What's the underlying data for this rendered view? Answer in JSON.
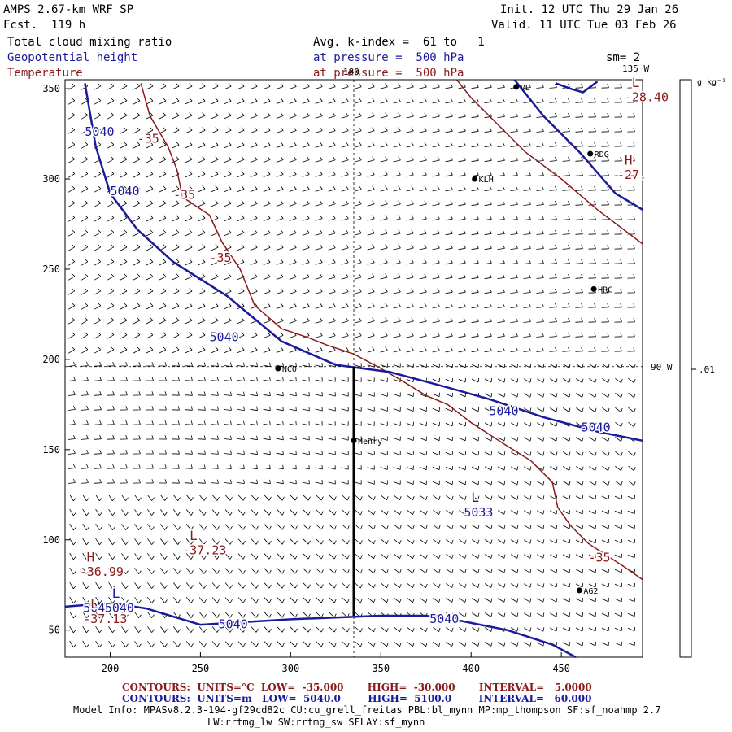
{
  "header": {
    "model": "AMPS 2.67-km WRF SP",
    "forecast": "Fcst.  119 h",
    "init": "Init. 12 UTC Thu 29 Jan 26",
    "valid": "Valid. 11 UTC Tue 03 Feb 26",
    "field_cloud": "Total cloud mixing ratio",
    "field_height": "Geopotential height",
    "field_temp": "Temperature",
    "avg": "Avg. k-index =  61 to   1",
    "pressure_height": "at pressure =  500 hPa",
    "pressure_temp": "at pressure =  500 hPa",
    "smoothing": "sm= 2"
  },
  "colorbar": {
    "units": "g kg⁻¹",
    "tick_value": ".01"
  },
  "map_labels": {
    "lon_180": "180",
    "lon_135w": "135 W",
    "lon_90w": "90 W"
  },
  "stations": [
    {
      "name": "NCO",
      "x": 293,
      "y": 195
    },
    {
      "name": "Henry",
      "x": 335,
      "y": 155
    },
    {
      "name": "KLH",
      "x": 402,
      "y": 300
    },
    {
      "name": "RDG",
      "x": 466,
      "y": 314
    },
    {
      "name": "HRC",
      "x": 468,
      "y": 239
    },
    {
      "name": "AG2",
      "x": 460,
      "y": 72
    },
    {
      "name": "VL",
      "x": 425,
      "y": 351
    }
  ],
  "chart_data": {
    "type": "line",
    "xlim": [
      175,
      495
    ],
    "ylim": [
      35,
      355
    ],
    "x_ticks": [
      200,
      250,
      300,
      350,
      400,
      450
    ],
    "y_ticks": [
      50,
      100,
      150,
      200,
      250,
      300,
      350
    ],
    "grid": false,
    "crosshair": {
      "x": 335,
      "y": 196
    },
    "cross_section": {
      "x": 335,
      "y_from": 58,
      "y_to": 196
    },
    "height_contours": [
      {
        "value": "5040",
        "points": [
          [
            186,
            353
          ],
          [
            192,
            318
          ],
          [
            200,
            292
          ],
          [
            215,
            272
          ],
          [
            235,
            254
          ],
          [
            265,
            235
          ],
          [
            295,
            210
          ],
          [
            325,
            197
          ],
          [
            355,
            193
          ],
          [
            385,
            185
          ],
          [
            410,
            178
          ],
          [
            440,
            168
          ],
          [
            470,
            160
          ],
          [
            495,
            155
          ]
        ]
      },
      {
        "value": "5040",
        "points": [
          [
            175,
            63
          ],
          [
            200,
            65
          ],
          [
            220,
            62
          ],
          [
            250,
            53
          ],
          [
            300,
            56
          ],
          [
            350,
            58
          ],
          [
            375,
            58
          ],
          [
            395,
            55
          ],
          [
            420,
            50
          ],
          [
            445,
            42
          ],
          [
            458,
            35
          ]
        ]
      },
      {
        "value": "",
        "points": [
          [
            424,
            355
          ],
          [
            440,
            335
          ],
          [
            460,
            315
          ],
          [
            480,
            292
          ],
          [
            495,
            283
          ]
        ]
      },
      {
        "value": "",
        "points": [
          [
            447,
            353
          ],
          [
            455,
            350
          ],
          [
            462,
            348
          ],
          [
            470,
            354
          ]
        ]
      }
    ],
    "height_labels": [
      {
        "text": "5040",
        "x": 186,
        "y": 324
      },
      {
        "text": "5040",
        "x": 200,
        "y": 291
      },
      {
        "text": "5040",
        "x": 255,
        "y": 210
      },
      {
        "text": "5040",
        "x": 410,
        "y": 169
      },
      {
        "text": "5040",
        "x": 461,
        "y": 160
      },
      {
        "text": "5040",
        "x": 185,
        "y": 60
      },
      {
        "text": "5040",
        "x": 260,
        "y": 51
      },
      {
        "text": "5040",
        "x": 377,
        "y": 54
      }
    ],
    "height_extrema": [
      {
        "type": "L",
        "value": "5033",
        "x": 396,
        "y": 113
      },
      {
        "type": "L",
        "value": "5040",
        "x": 197,
        "y": 60
      }
    ],
    "temp_contours": [
      {
        "value": "-35",
        "points": [
          [
            217,
            353
          ],
          [
            222,
            335
          ],
          [
            232,
            318
          ],
          [
            237,
            305
          ],
          [
            240,
            290
          ],
          [
            255,
            280
          ],
          [
            262,
            265
          ],
          [
            272,
            250
          ],
          [
            280,
            230
          ],
          [
            295,
            217
          ],
          [
            310,
            212
          ],
          [
            320,
            208
          ],
          [
            335,
            203
          ],
          [
            350,
            195
          ],
          [
            362,
            188
          ],
          [
            375,
            180
          ],
          [
            387,
            175
          ],
          [
            400,
            165
          ],
          [
            420,
            152
          ],
          [
            433,
            144
          ],
          [
            445,
            132
          ],
          [
            448,
            118
          ],
          [
            455,
            108
          ],
          [
            465,
            98
          ],
          [
            485,
            85
          ],
          [
            495,
            78
          ]
        ]
      },
      {
        "value": "",
        "points": [
          [
            392,
            355
          ],
          [
            400,
            345
          ],
          [
            415,
            330
          ],
          [
            430,
            315
          ],
          [
            450,
            300
          ],
          [
            470,
            283
          ],
          [
            495,
            264
          ]
        ]
      }
    ],
    "temp_labels": [
      {
        "text": "-35",
        "x": 215,
        "y": 320
      },
      {
        "text": "-35",
        "x": 235,
        "y": 289
      },
      {
        "text": "-35",
        "x": 255,
        "y": 254
      },
      {
        "text": "-35",
        "x": 465,
        "y": 88
      }
    ],
    "temp_extrema": [
      {
        "type": "H",
        "value": "-36.99",
        "x": 183,
        "y": 80
      },
      {
        "type": "L",
        "value": "-37.23",
        "x": 240,
        "y": 92
      },
      {
        "type": "L",
        "value": "-37.13",
        "x": 185,
        "y": 54
      },
      {
        "type": "H",
        "value": "-27.",
        "x": 481,
        "y": 300
      },
      {
        "type": "L",
        "value": "-28.40",
        "x": 485,
        "y": 343
      }
    ]
  },
  "legend": {
    "temp_line": "CONTOURS:  UNITS=°C  LOW=  -35.000       HIGH=  -30.000       INTERVAL=   5.0000",
    "height_line": "CONTOURS:  UNITS=m   LOW=  5040.0        HIGH=  5100.0        INTERVAL=   60.000"
  },
  "model_info": {
    "line1": "Model Info: MPASv8.2.3-194-gf29cd82c CU:cu_grell_freitas PBL:bl_mynn MP:mp_thompson SF:sf_noahmp 2.7",
    "line2": "LW:rrtmg_lw SW:rrtmg_sw SFLAY:sf_mynn"
  },
  "colors": {
    "height": "#1a1a9c",
    "temp": "#8b1a1a",
    "barb": "#000000"
  }
}
